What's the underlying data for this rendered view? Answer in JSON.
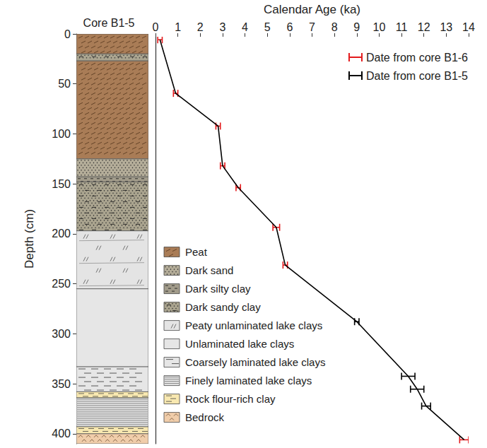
{
  "chart_data": {
    "type": "scatter",
    "x_label": "Calendar Age (ka)",
    "y_label": "Depth (cm)",
    "xlim": [
      0,
      14
    ],
    "xticks": [
      0,
      1,
      2,
      3,
      4,
      5,
      6,
      7,
      8,
      9,
      10,
      11,
      12,
      13,
      14
    ],
    "ylim": [
      0,
      410
    ],
    "yticks": [
      0,
      50,
      100,
      150,
      200,
      250,
      300,
      350,
      400
    ],
    "grid": false,
    "legend": "top-right",
    "series": [
      {
        "type": "line",
        "color": "#000000",
        "x": [
          0.2,
          0.9,
          2.8,
          3.0,
          3.7,
          5.4,
          5.8,
          9.0,
          11.3,
          11.7,
          12.1,
          13.8
        ],
        "y": [
          3,
          57,
          90,
          130,
          152,
          192,
          230,
          287,
          342,
          355,
          372,
          406
        ]
      },
      {
        "name": "Date from core B1-6",
        "type": "errorbar",
        "color": "#e31a1c",
        "x": [
          0.2,
          0.9,
          2.8,
          3.0,
          3.7,
          5.4,
          5.8,
          13.8
        ],
        "y": [
          3,
          57,
          90,
          130,
          152,
          192,
          230,
          406
        ],
        "x_error": [
          0.1,
          0.1,
          0.1,
          0.1,
          0.1,
          0.15,
          0.1,
          0.2
        ]
      },
      {
        "name": "Date from core B1-5",
        "type": "errorbar",
        "color": "#000000",
        "x": [
          9.0,
          11.3,
          11.7,
          12.1
        ],
        "y": [
          287,
          342,
          355,
          372
        ],
        "x_error": [
          0.1,
          0.3,
          0.3,
          0.2
        ]
      }
    ],
    "core": {
      "title": "Core B1-5",
      "lithologies": [
        {
          "label": "Peat",
          "color": "#a97c56"
        },
        {
          "label": "Dark sand",
          "color": "#b4ad99"
        },
        {
          "label": "Dark silty clay",
          "color": "#a29c8b"
        },
        {
          "label": "Dark sandy clay",
          "color": "#aaa48f"
        },
        {
          "label": "Peaty unlaminated lake clays",
          "color": "#e4e4e4"
        },
        {
          "label": "Unlaminated lake clays",
          "color": "#e6e6e6"
        },
        {
          "label": "Coarsely laminated lake clays",
          "color": "#e6e6e6"
        },
        {
          "label": "Finely laminated lake clays",
          "color": "#e6e6e6"
        },
        {
          "label": "Rock flour-rich clay",
          "color": "#f8e8b0"
        },
        {
          "label": "Bedrock",
          "color": "#f0cdaa"
        }
      ],
      "layers": [
        {
          "top": 0,
          "bottom": 20,
          "lithology": "Peat"
        },
        {
          "top": 20,
          "bottom": 27,
          "lithology": "Dark sandy clay"
        },
        {
          "top": 27,
          "bottom": 125,
          "lithology": "Peat"
        },
        {
          "top": 125,
          "bottom": 143,
          "lithology": "Dark sand"
        },
        {
          "top": 143,
          "bottom": 148,
          "lithology": "Dark silty clay"
        },
        {
          "top": 148,
          "bottom": 197,
          "lithology": "Dark sandy clay"
        },
        {
          "top": 197,
          "bottom": 255,
          "lithology": "Peaty unlaminated lake clays"
        },
        {
          "top": 255,
          "bottom": 333,
          "lithology": "Unlaminated lake clays"
        },
        {
          "top": 333,
          "bottom": 358,
          "lithology": "Coarsely laminated lake clays"
        },
        {
          "top": 358,
          "bottom": 364,
          "lithology": "Rock flour-rich clay"
        },
        {
          "top": 364,
          "bottom": 393,
          "lithology": "Finely laminated lake clays"
        },
        {
          "top": 393,
          "bottom": 400,
          "lithology": "Rock flour-rich clay"
        },
        {
          "top": 400,
          "bottom": 410,
          "lithology": "Bedrock"
        }
      ]
    }
  }
}
